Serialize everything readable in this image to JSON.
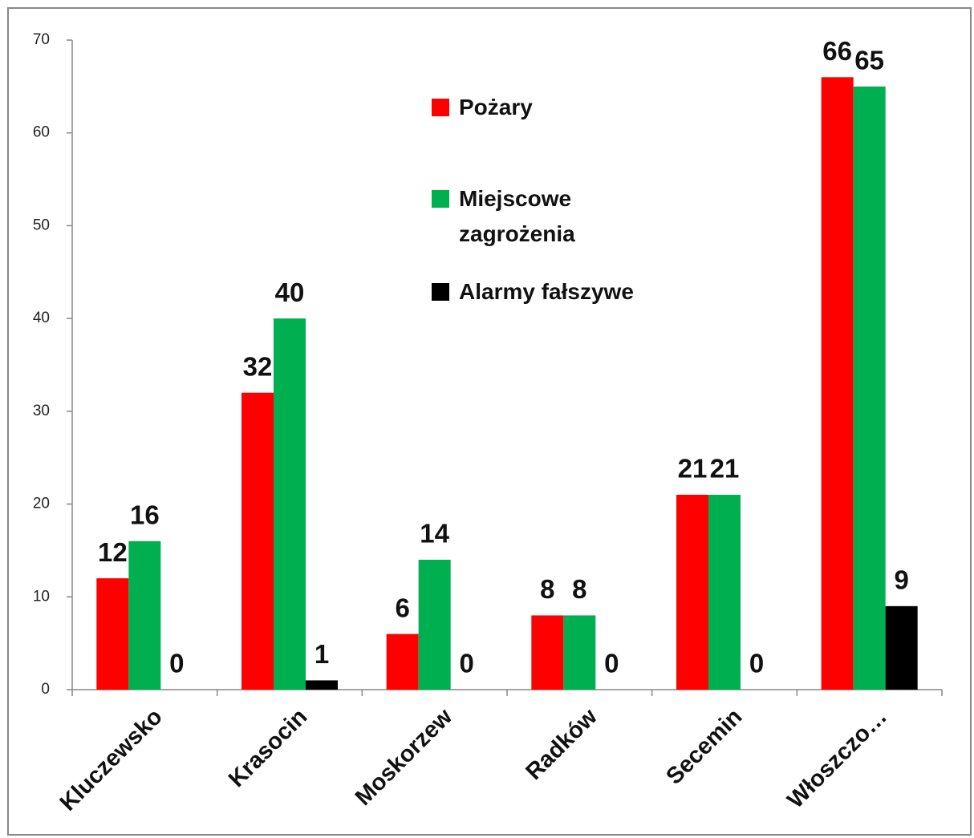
{
  "chart_data": {
    "type": "bar",
    "categories": [
      "Kluczewsko",
      "Krasocin",
      "Moskorzew",
      "Radków",
      "Secemin",
      "Włoszczo…"
    ],
    "series": [
      {
        "name": "Pożary",
        "color": "#ff0000",
        "values": [
          12,
          32,
          6,
          8,
          21,
          66
        ]
      },
      {
        "name": "Miejscowe zagrożenia",
        "color": "#00b050",
        "values": [
          16,
          40,
          14,
          8,
          21,
          65
        ]
      },
      {
        "name": "Alarmy fałszywe",
        "color": "#000000",
        "values": [
          0,
          1,
          0,
          0,
          0,
          9
        ]
      }
    ],
    "ylim": [
      0,
      70
    ],
    "yticks": [
      0,
      10,
      20,
      30,
      40,
      50,
      60,
      70
    ],
    "grid": false,
    "legend": "top"
  }
}
